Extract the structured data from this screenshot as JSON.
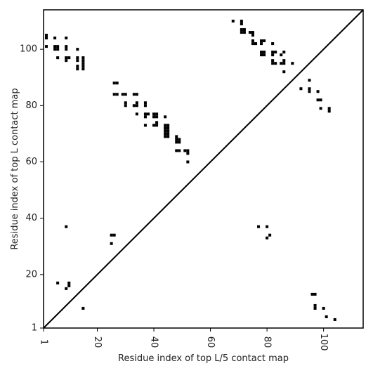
{
  "chart_data": {
    "type": "scatter",
    "xlabel": "Residue index of top L/5 contact map",
    "ylabel": "Residue index of top L contact map",
    "xlim": [
      1,
      114
    ],
    "ylim": [
      1,
      114
    ],
    "x_ticks": [
      1,
      20,
      40,
      60,
      80,
      100
    ],
    "x_tick_labels": [
      "1",
      "20",
      "40",
      "60",
      "80",
      "100"
    ],
    "y_ticks": [
      1,
      20,
      40,
      60,
      80,
      100
    ],
    "y_tick_labels": [
      "1",
      "20",
      "40",
      "60",
      "80",
      "100"
    ],
    "diagonal": true,
    "grid": false,
    "marker_color": "#000000",
    "series": [
      {
        "region": "upper-left",
        "points": [
          [
            2,
            105
          ],
          [
            2,
            104
          ],
          [
            2,
            101
          ],
          [
            5,
            104
          ],
          [
            6,
            101
          ],
          [
            6,
            100
          ],
          [
            5,
            101
          ],
          [
            5,
            100
          ],
          [
            6,
            97
          ],
          [
            9,
            104
          ],
          [
            9,
            101
          ],
          [
            9,
            100
          ],
          [
            9,
            97
          ],
          [
            9,
            96
          ],
          [
            10,
            97
          ],
          [
            13,
            100
          ],
          [
            13,
            97
          ],
          [
            13,
            96
          ],
          [
            13,
            94
          ],
          [
            13,
            93
          ],
          [
            15,
            97
          ],
          [
            15,
            96
          ],
          [
            15,
            95
          ],
          [
            15,
            94
          ],
          [
            15,
            93
          ],
          [
            26,
            88
          ],
          [
            27,
            88
          ],
          [
            26,
            84
          ],
          [
            27,
            84
          ],
          [
            29,
            84
          ],
          [
            30,
            84
          ],
          [
            30,
            81
          ],
          [
            30,
            80
          ],
          [
            33,
            84
          ],
          [
            34,
            84
          ],
          [
            33,
            80
          ],
          [
            34,
            81
          ],
          [
            34,
            80
          ],
          [
            34,
            77
          ],
          [
            37,
            81
          ],
          [
            37,
            80
          ],
          [
            37,
            77
          ],
          [
            38,
            77
          ],
          [
            37,
            76
          ],
          [
            37,
            73
          ],
          [
            40,
            77
          ],
          [
            40,
            76
          ],
          [
            41,
            77
          ],
          [
            41,
            76
          ],
          [
            40,
            73
          ],
          [
            41,
            74
          ],
          [
            41,
            73
          ],
          [
            44,
            76
          ],
          [
            44,
            73
          ],
          [
            45,
            73
          ],
          [
            44,
            72
          ],
          [
            45,
            72
          ],
          [
            44,
            71
          ],
          [
            45,
            71
          ],
          [
            44,
            70
          ],
          [
            45,
            70
          ],
          [
            44,
            69
          ],
          [
            45,
            69
          ],
          [
            48,
            69
          ],
          [
            48,
            68
          ],
          [
            49,
            68
          ],
          [
            48,
            67
          ],
          [
            49,
            67
          ],
          [
            48,
            64
          ],
          [
            49,
            64
          ],
          [
            51,
            64
          ],
          [
            52,
            64
          ],
          [
            52,
            63
          ],
          [
            52,
            60
          ],
          [
            68,
            110
          ],
          [
            71,
            110
          ],
          [
            71,
            109
          ],
          [
            71,
            107
          ],
          [
            72,
            107
          ],
          [
            71,
            106
          ],
          [
            72,
            106
          ],
          [
            74,
            106
          ],
          [
            75,
            106
          ],
          [
            75,
            105
          ],
          [
            75,
            103
          ],
          [
            75,
            102
          ],
          [
            76,
            102
          ],
          [
            78,
            103
          ],
          [
            79,
            103
          ],
          [
            78,
            102
          ],
          [
            78,
            99
          ],
          [
            79,
            99
          ],
          [
            78,
            98
          ],
          [
            79,
            98
          ],
          [
            82,
            102
          ],
          [
            82,
            99
          ],
          [
            83,
            99
          ],
          [
            82,
            98
          ],
          [
            82,
            96
          ],
          [
            82,
            95
          ],
          [
            83,
            95
          ],
          [
            85,
            98
          ],
          [
            86,
            99
          ],
          [
            85,
            95
          ],
          [
            86,
            96
          ],
          [
            86,
            95
          ],
          [
            86,
            92
          ],
          [
            89,
            95
          ],
          [
            92,
            86
          ],
          [
            95,
            89
          ],
          [
            95,
            86
          ],
          [
            95,
            85
          ],
          [
            98,
            85
          ],
          [
            98,
            82
          ],
          [
            99,
            82
          ],
          [
            99,
            79
          ],
          [
            102,
            79
          ],
          [
            102,
            78
          ]
        ]
      },
      {
        "region": "lower-right",
        "points": [
          [
            9,
            37
          ],
          [
            25,
            34
          ],
          [
            26,
            34
          ],
          [
            25,
            31
          ],
          [
            6,
            17
          ],
          [
            10,
            17
          ],
          [
            10,
            16
          ],
          [
            9,
            15
          ],
          [
            15,
            8
          ],
          [
            77,
            37
          ],
          [
            80,
            37
          ],
          [
            81,
            34
          ],
          [
            80,
            33
          ],
          [
            96,
            13
          ],
          [
            97,
            13
          ],
          [
            97,
            9
          ],
          [
            97,
            8
          ],
          [
            100,
            8
          ],
          [
            101,
            5
          ],
          [
            104,
            4
          ]
        ]
      }
    ]
  }
}
